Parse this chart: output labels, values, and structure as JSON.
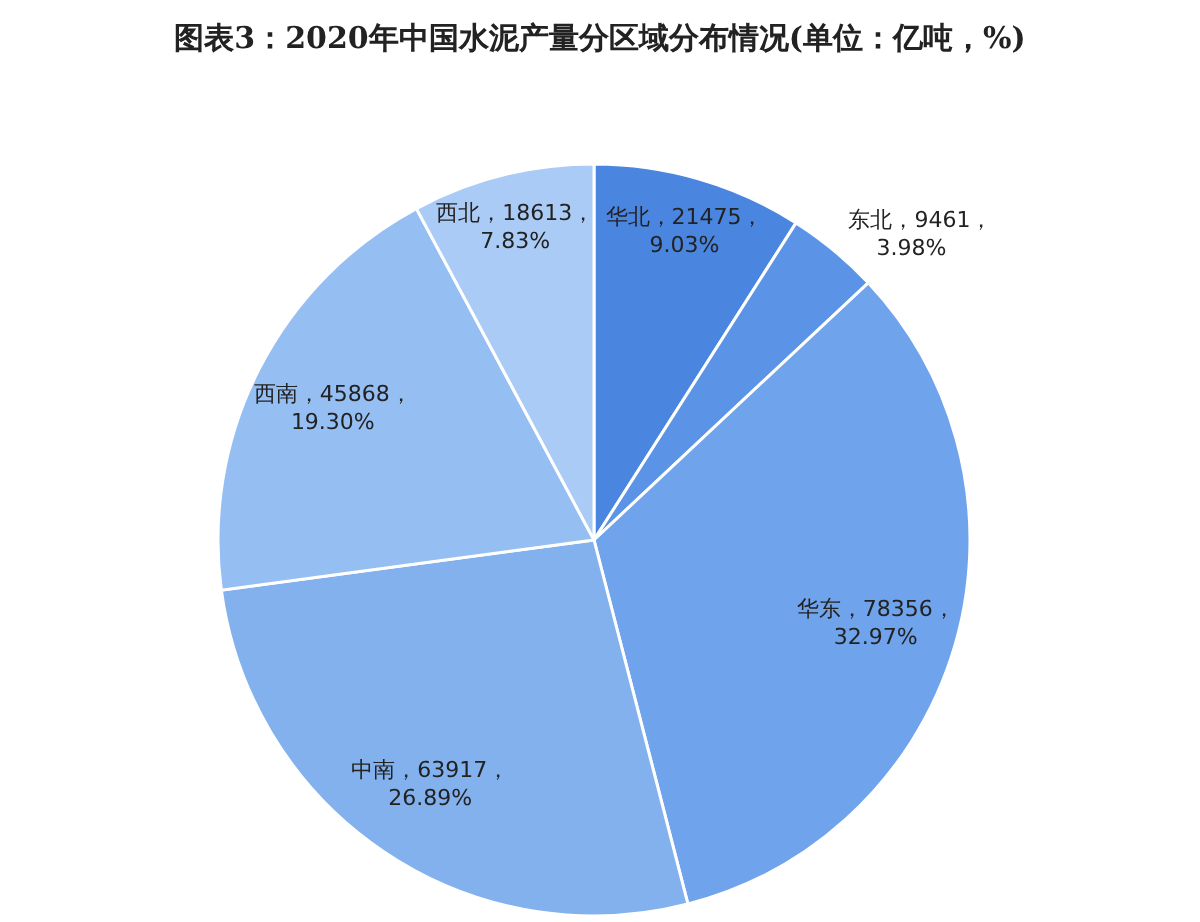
{
  "chart_data": {
    "type": "pie",
    "title": "图表3：2020年中国水泥产量分区域分布情况(单位：亿吨，%)",
    "categories": [
      "华北",
      "东北",
      "华东",
      "中南",
      "西南",
      "西北"
    ],
    "values": [
      9.03,
      3.98,
      32.97,
      26.89,
      19.3,
      7.83
    ],
    "value_labels": [
      "21475，9.03%",
      "9461，3.98%",
      "78356，32.97%",
      "63917，26.89%",
      "45868，19.30%",
      "18613，7.83%"
    ],
    "colors": [
      "#4a86e0",
      "#5b94e6",
      "#6fa3eb",
      "#82b1ee",
      "#95bef2",
      "#aacbf5"
    ]
  }
}
